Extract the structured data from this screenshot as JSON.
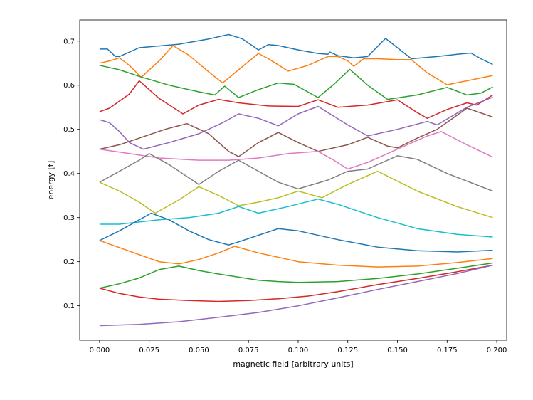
{
  "chart_data": {
    "type": "line",
    "title": "",
    "xlabel": "magnetic field [arbitrary units]",
    "ylabel": "energy [t]",
    "xlim": [
      -0.01,
      0.205
    ],
    "ylim": [
      0.022,
      0.748
    ],
    "grid": false,
    "legend": "none",
    "xticks": [
      0.0,
      0.025,
      0.05,
      0.075,
      0.1,
      0.125,
      0.15,
      0.175,
      0.2
    ],
    "xtick_labels": [
      "0.000",
      "0.025",
      "0.050",
      "0.075",
      "0.100",
      "0.125",
      "0.150",
      "0.175",
      "0.200"
    ],
    "yticks": [
      0.1,
      0.2,
      0.3,
      0.4,
      0.5,
      0.6,
      0.7
    ],
    "ytick_labels": [
      "0.1",
      "0.2",
      "0.3",
      "0.4",
      "0.5",
      "0.6",
      "0.7"
    ],
    "series": [
      {
        "color": "#1f77b4",
        "points": [
          [
            0.0,
            0.682
          ],
          [
            0.004,
            0.682
          ],
          [
            0.008,
            0.665
          ],
          [
            0.01,
            0.665
          ],
          [
            0.02,
            0.685
          ],
          [
            0.04,
            0.693
          ],
          [
            0.055,
            0.705
          ],
          [
            0.065,
            0.715
          ],
          [
            0.072,
            0.705
          ],
          [
            0.08,
            0.68
          ],
          [
            0.085,
            0.692
          ],
          [
            0.09,
            0.69
          ],
          [
            0.1,
            0.68
          ],
          [
            0.11,
            0.672
          ],
          [
            0.115,
            0.67
          ],
          [
            0.116,
            0.675
          ],
          [
            0.12,
            0.667
          ],
          [
            0.128,
            0.662
          ],
          [
            0.135,
            0.665
          ],
          [
            0.144,
            0.706
          ],
          [
            0.15,
            0.685
          ],
          [
            0.157,
            0.66
          ],
          [
            0.17,
            0.665
          ],
          [
            0.18,
            0.67
          ],
          [
            0.187,
            0.673
          ],
          [
            0.192,
            0.66
          ],
          [
            0.198,
            0.647
          ]
        ]
      },
      {
        "color": "#ff7f0e",
        "points": [
          [
            0.0,
            0.65
          ],
          [
            0.005,
            0.655
          ],
          [
            0.01,
            0.662
          ],
          [
            0.015,
            0.645
          ],
          [
            0.021,
            0.618
          ],
          [
            0.03,
            0.655
          ],
          [
            0.037,
            0.69
          ],
          [
            0.045,
            0.668
          ],
          [
            0.055,
            0.63
          ],
          [
            0.062,
            0.605
          ],
          [
            0.07,
            0.635
          ],
          [
            0.08,
            0.672
          ],
          [
            0.085,
            0.66
          ],
          [
            0.095,
            0.632
          ],
          [
            0.105,
            0.645
          ],
          [
            0.115,
            0.665
          ],
          [
            0.12,
            0.665
          ],
          [
            0.125,
            0.655
          ],
          [
            0.128,
            0.643
          ],
          [
            0.133,
            0.66
          ],
          [
            0.14,
            0.66
          ],
          [
            0.15,
            0.658
          ],
          [
            0.157,
            0.658
          ],
          [
            0.165,
            0.628
          ],
          [
            0.175,
            0.601
          ],
          [
            0.185,
            0.61
          ],
          [
            0.198,
            0.622
          ]
        ]
      },
      {
        "color": "#2ca02c",
        "points": [
          [
            0.0,
            0.645
          ],
          [
            0.01,
            0.635
          ],
          [
            0.02,
            0.62
          ],
          [
            0.035,
            0.6
          ],
          [
            0.05,
            0.585
          ],
          [
            0.058,
            0.578
          ],
          [
            0.063,
            0.598
          ],
          [
            0.07,
            0.572
          ],
          [
            0.08,
            0.59
          ],
          [
            0.09,
            0.605
          ],
          [
            0.098,
            0.602
          ],
          [
            0.11,
            0.572
          ],
          [
            0.118,
            0.602
          ],
          [
            0.126,
            0.636
          ],
          [
            0.135,
            0.6
          ],
          [
            0.145,
            0.568
          ],
          [
            0.16,
            0.578
          ],
          [
            0.175,
            0.595
          ],
          [
            0.185,
            0.578
          ],
          [
            0.192,
            0.582
          ],
          [
            0.198,
            0.596
          ]
        ]
      },
      {
        "color": "#d62728",
        "points": [
          [
            0.0,
            0.54
          ],
          [
            0.005,
            0.548
          ],
          [
            0.015,
            0.58
          ],
          [
            0.02,
            0.61
          ],
          [
            0.03,
            0.57
          ],
          [
            0.042,
            0.535
          ],
          [
            0.05,
            0.555
          ],
          [
            0.06,
            0.568
          ],
          [
            0.07,
            0.56
          ],
          [
            0.085,
            0.553
          ],
          [
            0.1,
            0.552
          ],
          [
            0.11,
            0.567
          ],
          [
            0.12,
            0.55
          ],
          [
            0.135,
            0.555
          ],
          [
            0.15,
            0.567
          ],
          [
            0.16,
            0.538
          ],
          [
            0.165,
            0.525
          ],
          [
            0.175,
            0.545
          ],
          [
            0.185,
            0.56
          ],
          [
            0.19,
            0.555
          ],
          [
            0.198,
            0.578
          ]
        ]
      },
      {
        "color": "#9467bd",
        "points": [
          [
            0.0,
            0.522
          ],
          [
            0.005,
            0.515
          ],
          [
            0.01,
            0.495
          ],
          [
            0.015,
            0.47
          ],
          [
            0.022,
            0.455
          ],
          [
            0.035,
            0.47
          ],
          [
            0.05,
            0.49
          ],
          [
            0.062,
            0.515
          ],
          [
            0.07,
            0.535
          ],
          [
            0.08,
            0.525
          ],
          [
            0.09,
            0.508
          ],
          [
            0.1,
            0.535
          ],
          [
            0.11,
            0.552
          ],
          [
            0.125,
            0.51
          ],
          [
            0.135,
            0.485
          ],
          [
            0.15,
            0.5
          ],
          [
            0.165,
            0.518
          ],
          [
            0.17,
            0.51
          ],
          [
            0.185,
            0.55
          ],
          [
            0.198,
            0.573
          ]
        ]
      },
      {
        "color": "#8c564b",
        "points": [
          [
            0.0,
            0.455
          ],
          [
            0.01,
            0.465
          ],
          [
            0.02,
            0.48
          ],
          [
            0.033,
            0.5
          ],
          [
            0.044,
            0.513
          ],
          [
            0.055,
            0.49
          ],
          [
            0.065,
            0.45
          ],
          [
            0.07,
            0.438
          ],
          [
            0.08,
            0.47
          ],
          [
            0.09,
            0.493
          ],
          [
            0.1,
            0.47
          ],
          [
            0.11,
            0.45
          ],
          [
            0.125,
            0.465
          ],
          [
            0.135,
            0.482
          ],
          [
            0.145,
            0.462
          ],
          [
            0.15,
            0.458
          ],
          [
            0.16,
            0.48
          ],
          [
            0.17,
            0.5
          ],
          [
            0.185,
            0.548
          ],
          [
            0.198,
            0.528
          ]
        ]
      },
      {
        "color": "#e377c2",
        "points": [
          [
            0.0,
            0.455
          ],
          [
            0.015,
            0.445
          ],
          [
            0.03,
            0.435
          ],
          [
            0.05,
            0.43
          ],
          [
            0.065,
            0.43
          ],
          [
            0.08,
            0.435
          ],
          [
            0.095,
            0.445
          ],
          [
            0.11,
            0.45
          ],
          [
            0.118,
            0.43
          ],
          [
            0.125,
            0.41
          ],
          [
            0.135,
            0.425
          ],
          [
            0.15,
            0.455
          ],
          [
            0.165,
            0.485
          ],
          [
            0.172,
            0.495
          ],
          [
            0.185,
            0.465
          ],
          [
            0.198,
            0.437
          ]
        ]
      },
      {
        "color": "#7f7f7f",
        "points": [
          [
            0.0,
            0.38
          ],
          [
            0.01,
            0.405
          ],
          [
            0.02,
            0.43
          ],
          [
            0.025,
            0.445
          ],
          [
            0.035,
            0.42
          ],
          [
            0.045,
            0.39
          ],
          [
            0.05,
            0.375
          ],
          [
            0.06,
            0.405
          ],
          [
            0.07,
            0.43
          ],
          [
            0.08,
            0.405
          ],
          [
            0.09,
            0.38
          ],
          [
            0.1,
            0.365
          ],
          [
            0.115,
            0.385
          ],
          [
            0.125,
            0.405
          ],
          [
            0.135,
            0.41
          ],
          [
            0.15,
            0.44
          ],
          [
            0.16,
            0.432
          ],
          [
            0.175,
            0.4
          ],
          [
            0.198,
            0.36
          ]
        ]
      },
      {
        "color": "#bcbd22",
        "points": [
          [
            0.0,
            0.38
          ],
          [
            0.01,
            0.36
          ],
          [
            0.02,
            0.335
          ],
          [
            0.028,
            0.31
          ],
          [
            0.04,
            0.34
          ],
          [
            0.05,
            0.37
          ],
          [
            0.06,
            0.35
          ],
          [
            0.07,
            0.327
          ],
          [
            0.08,
            0.335
          ],
          [
            0.09,
            0.345
          ],
          [
            0.1,
            0.36
          ],
          [
            0.112,
            0.345
          ],
          [
            0.125,
            0.375
          ],
          [
            0.14,
            0.405
          ],
          [
            0.16,
            0.36
          ],
          [
            0.18,
            0.325
          ],
          [
            0.198,
            0.3
          ]
        ]
      },
      {
        "color": "#17becf",
        "points": [
          [
            0.0,
            0.285
          ],
          [
            0.01,
            0.285
          ],
          [
            0.02,
            0.29
          ],
          [
            0.03,
            0.295
          ],
          [
            0.045,
            0.3
          ],
          [
            0.06,
            0.31
          ],
          [
            0.07,
            0.325
          ],
          [
            0.08,
            0.31
          ],
          [
            0.095,
            0.325
          ],
          [
            0.11,
            0.342
          ],
          [
            0.12,
            0.33
          ],
          [
            0.14,
            0.3
          ],
          [
            0.16,
            0.275
          ],
          [
            0.18,
            0.262
          ],
          [
            0.198,
            0.256
          ]
        ]
      },
      {
        "color": "#1f77b4",
        "points": [
          [
            0.0,
            0.248
          ],
          [
            0.01,
            0.27
          ],
          [
            0.02,
            0.295
          ],
          [
            0.026,
            0.31
          ],
          [
            0.035,
            0.295
          ],
          [
            0.045,
            0.27
          ],
          [
            0.055,
            0.25
          ],
          [
            0.065,
            0.238
          ],
          [
            0.07,
            0.245
          ],
          [
            0.08,
            0.26
          ],
          [
            0.09,
            0.275
          ],
          [
            0.1,
            0.27
          ],
          [
            0.12,
            0.25
          ],
          [
            0.14,
            0.233
          ],
          [
            0.16,
            0.225
          ],
          [
            0.18,
            0.222
          ],
          [
            0.198,
            0.226
          ]
        ]
      },
      {
        "color": "#ff7f0e",
        "points": [
          [
            0.0,
            0.248
          ],
          [
            0.01,
            0.232
          ],
          [
            0.02,
            0.216
          ],
          [
            0.03,
            0.2
          ],
          [
            0.04,
            0.195
          ],
          [
            0.05,
            0.205
          ],
          [
            0.06,
            0.22
          ],
          [
            0.068,
            0.235
          ],
          [
            0.08,
            0.22
          ],
          [
            0.1,
            0.2
          ],
          [
            0.12,
            0.192
          ],
          [
            0.14,
            0.188
          ],
          [
            0.16,
            0.19
          ],
          [
            0.18,
            0.198
          ],
          [
            0.198,
            0.207
          ]
        ]
      },
      {
        "color": "#2ca02c",
        "points": [
          [
            0.0,
            0.14
          ],
          [
            0.01,
            0.15
          ],
          [
            0.02,
            0.163
          ],
          [
            0.03,
            0.182
          ],
          [
            0.04,
            0.19
          ],
          [
            0.05,
            0.18
          ],
          [
            0.06,
            0.172
          ],
          [
            0.07,
            0.165
          ],
          [
            0.08,
            0.158
          ],
          [
            0.09,
            0.155
          ],
          [
            0.1,
            0.153
          ],
          [
            0.12,
            0.155
          ],
          [
            0.14,
            0.162
          ],
          [
            0.16,
            0.172
          ],
          [
            0.18,
            0.185
          ],
          [
            0.198,
            0.197
          ]
        ]
      },
      {
        "color": "#d62728",
        "points": [
          [
            0.0,
            0.14
          ],
          [
            0.01,
            0.128
          ],
          [
            0.02,
            0.12
          ],
          [
            0.03,
            0.115
          ],
          [
            0.045,
            0.112
          ],
          [
            0.06,
            0.11
          ],
          [
            0.075,
            0.112
          ],
          [
            0.09,
            0.116
          ],
          [
            0.105,
            0.122
          ],
          [
            0.12,
            0.132
          ],
          [
            0.14,
            0.148
          ],
          [
            0.16,
            0.162
          ],
          [
            0.18,
            0.177
          ],
          [
            0.198,
            0.192
          ]
        ]
      },
      {
        "color": "#9467bd",
        "points": [
          [
            0.0,
            0.055
          ],
          [
            0.02,
            0.058
          ],
          [
            0.04,
            0.064
          ],
          [
            0.06,
            0.074
          ],
          [
            0.08,
            0.085
          ],
          [
            0.1,
            0.1
          ],
          [
            0.12,
            0.118
          ],
          [
            0.14,
            0.137
          ],
          [
            0.16,
            0.155
          ],
          [
            0.18,
            0.173
          ],
          [
            0.198,
            0.192
          ]
        ]
      }
    ]
  }
}
